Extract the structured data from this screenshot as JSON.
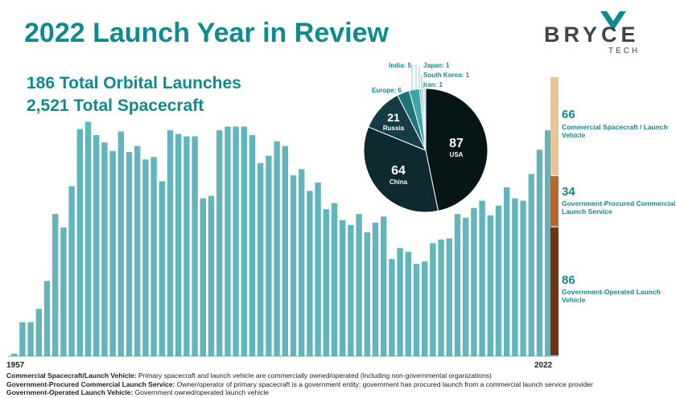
{
  "header": {
    "title": "2022 Launch Year in Review",
    "stat_launches": "186 Total Orbital Launches",
    "stat_spacecraft": "2,521 Total Spacecraft"
  },
  "logo": {
    "word": "BRYCE",
    "sub": "TECH"
  },
  "colors": {
    "accent": "#0f8a8f",
    "bar": "#62b6bb",
    "commercial": "#e8c596",
    "gov_procured": "#b9652d",
    "gov_operated": "#6d3511"
  },
  "chart_data": [
    {
      "type": "bar",
      "xlabel_start": "1957",
      "xlabel_end": "2022",
      "x": [
        1957,
        1958,
        1959,
        1960,
        1961,
        1962,
        1963,
        1964,
        1965,
        1966,
        1967,
        1968,
        1969,
        1970,
        1971,
        1972,
        1973,
        1974,
        1975,
        1976,
        1977,
        1978,
        1979,
        1980,
        1981,
        1982,
        1983,
        1984,
        1985,
        1986,
        1987,
        1988,
        1989,
        1990,
        1991,
        1992,
        1993,
        1994,
        1995,
        1996,
        1997,
        1998,
        1999,
        2000,
        2001,
        2002,
        2003,
        2004,
        2005,
        2006,
        2007,
        2008,
        2009,
        2010,
        2011,
        2012,
        2013,
        2014,
        2015,
        2016,
        2017,
        2018,
        2019,
        2020,
        2021,
        2022
      ],
      "values": [
        2,
        28,
        28,
        39,
        62,
        117,
        106,
        140,
        187,
        193,
        182,
        176,
        169,
        185,
        168,
        173,
        162,
        164,
        144,
        186,
        183,
        181,
        181,
        130,
        132,
        186,
        189,
        189,
        189,
        182,
        159,
        165,
        177,
        173,
        149,
        154,
        136,
        143,
        121,
        126,
        112,
        108,
        117,
        102,
        110,
        115,
        80,
        89,
        86,
        76,
        78,
        93,
        96,
        97,
        117,
        114,
        122,
        128,
        116,
        124,
        139,
        130,
        128,
        150,
        170,
        186
      ],
      "ylim": [
        0,
        200
      ]
    },
    {
      "type": "bar",
      "stacked": true,
      "segments": [
        {
          "value": 66,
          "label": "66",
          "text": "Commercial Spacecraft / Launch Vehicle",
          "color": "#e8c596"
        },
        {
          "value": 34,
          "label": "34",
          "text": "Government-Procured Commercial Launch Service",
          "color": "#b9652d"
        },
        {
          "value": 86,
          "label": "86",
          "text": "Government-Operated Launch Vehicle",
          "color": "#6d3511"
        }
      ]
    },
    {
      "type": "pie",
      "slices": [
        {
          "name": "USA",
          "value": 87,
          "color": "#061516"
        },
        {
          "name": "China",
          "value": 64,
          "color": "#0e2a30"
        },
        {
          "name": "Russia",
          "value": 21,
          "color": "#143d45"
        },
        {
          "name": "Europe",
          "value": 6,
          "color": "#1d7479"
        },
        {
          "name": "India",
          "value": 5,
          "color": "#3ea5aa"
        },
        {
          "name": "Japan",
          "value": 1,
          "color": "#62b6bb"
        },
        {
          "name": "South Korea",
          "value": 1,
          "color": "#90d0d3"
        },
        {
          "name": "Iran",
          "value": 1,
          "color": "#b7e1e3"
        }
      ]
    }
  ],
  "labels": {
    "usa_value": "87",
    "usa_name": "USA",
    "china_value": "64",
    "china_name": "China",
    "russia_value": "21",
    "russia_name": "Russia",
    "europe": "Europe: 6",
    "india": "India: 5",
    "japan": "Japan: 1",
    "south_korea": "South Korea: 1",
    "iran": "Iran: 1"
  },
  "definitions": [
    {
      "term": "Commercial Spacecraft/Launch Vehicle:",
      "text": " Primary spacecraft and launch vehicle are commercially owned/operated (including non-governmental organizations)"
    },
    {
      "term": "Government-Procured Commercial Launch Service:",
      "text": " Owner/operator of primary spacecraft is a government entity; government has procured launch from a commercial launch service provider"
    },
    {
      "term": "Government-Operated Launch Vehicle:",
      "text": " Government owned/operated launch vehicle"
    }
  ]
}
